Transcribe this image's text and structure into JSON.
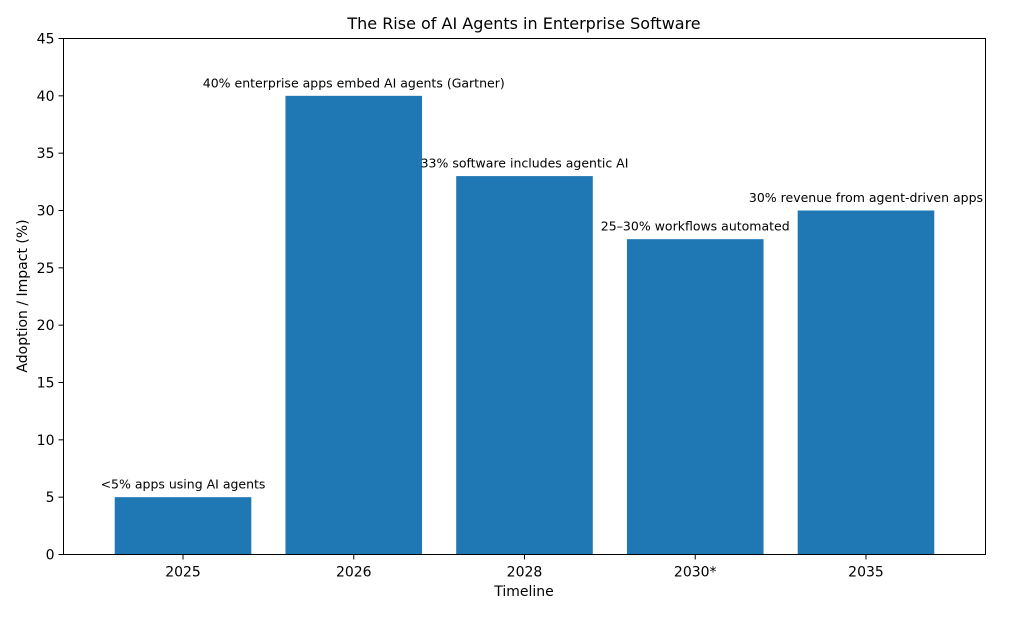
{
  "chart_data": {
    "type": "bar",
    "title": "The Rise of AI Agents in Enterprise Software",
    "xlabel": "Timeline",
    "ylabel": "Adoption / Impact (%)",
    "categories": [
      "2025",
      "2026",
      "2028",
      "2030*",
      "2035"
    ],
    "values": [
      5,
      40,
      33,
      27.5,
      30
    ],
    "annotations": [
      "<5% apps using AI agents",
      "40% enterprise apps embed AI agents (Gartner)",
      "33% software includes agentic AI",
      "25–30% workflows automated",
      "30% revenue from agent-driven apps"
    ],
    "ylim": [
      0,
      45
    ],
    "yticks": [
      0,
      5,
      10,
      15,
      20,
      25,
      30,
      35,
      40,
      45
    ],
    "grid": false,
    "bar_color": "#1f77b4"
  }
}
